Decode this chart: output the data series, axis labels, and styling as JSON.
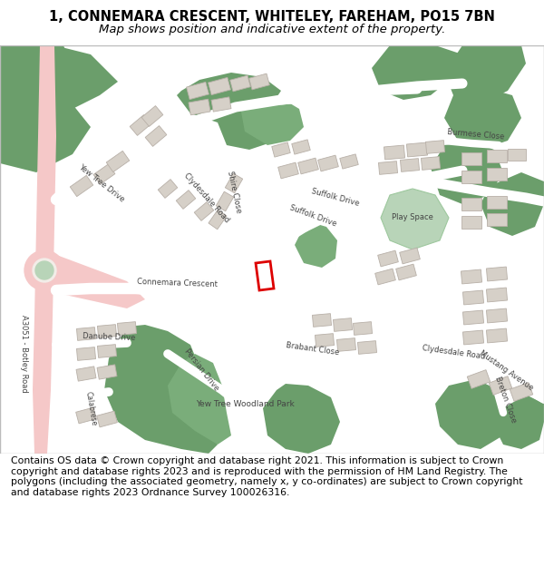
{
  "title_line1": "1, CONNEMARA CRESCENT, WHITELEY, FAREHAM, PO15 7BN",
  "title_line2": "Map shows position and indicative extent of the property.",
  "footer_text": "Contains OS data © Crown copyright and database right 2021. This information is subject to Crown copyright and database rights 2023 and is reproduced with the permission of HM Land Registry. The polygons (including the associated geometry, namely x, y co-ordinates) are subject to Crown copyright and database rights 2023 Ordnance Survey 100026316.",
  "title_fontsize": 10.5,
  "subtitle_fontsize": 9.5,
  "footer_fontsize": 7.8,
  "bg_color": "#ffffff",
  "map_bg": "#f2ede8",
  "green_dark": "#6b9e6b",
  "green_mid": "#7aad7a",
  "green_light": "#9ec89e",
  "green_pale": "#b8d4b8",
  "road_white": "#ffffff",
  "road_outline": "#cccccc",
  "building_fill": "#d6d0c8",
  "building_edge": "#b8b0a8",
  "pink_road": "#f5c8c8",
  "pink_light": "#fadadada",
  "red_poly": "#dd0000",
  "border_color": "#bbbbbb",
  "text_color": "#444444"
}
